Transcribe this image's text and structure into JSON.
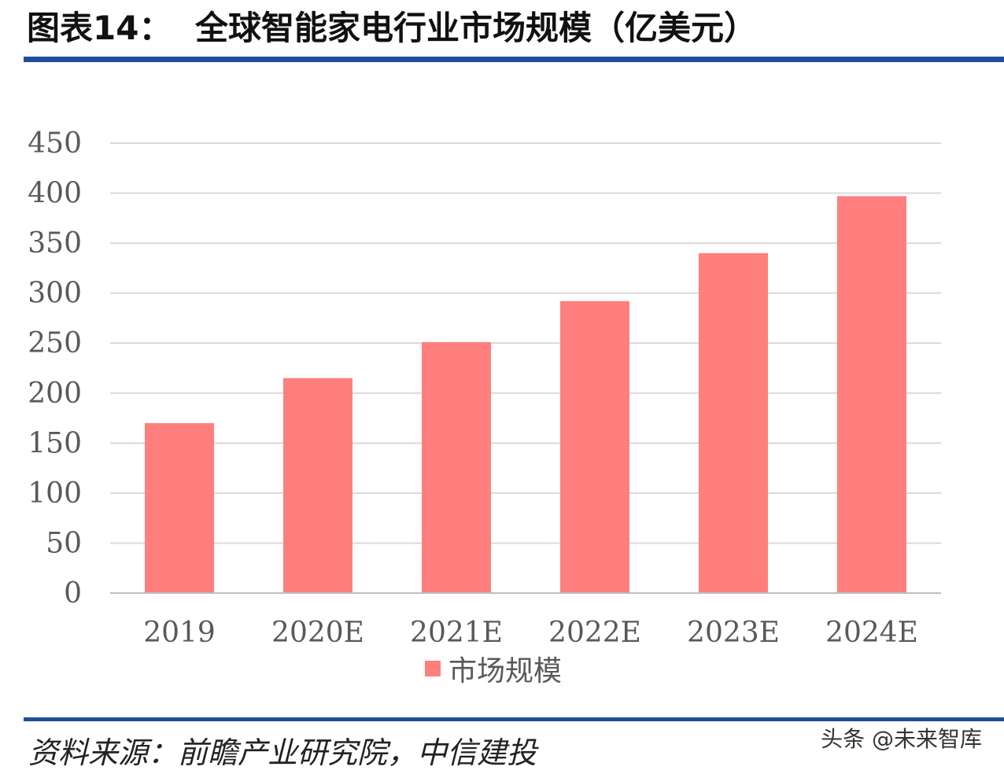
{
  "header": {
    "figure_label": "图表14：",
    "figure_title": "全球智能家电行业市场规模（亿美元）"
  },
  "footer": {
    "source": "资料来源：前瞻产业研究院，中信建投",
    "watermark": "头条 @未来智库"
  },
  "colors": {
    "bar": "#ff7f7f",
    "rule": "#1f4e9a",
    "grid": "#d9d9d9",
    "axis": "#bfbfbf",
    "text": "#595959"
  },
  "chart_data": {
    "type": "bar",
    "categories": [
      "2019",
      "2020E",
      "2021E",
      "2022E",
      "2023E",
      "2024E"
    ],
    "series": [
      {
        "name": "市场规模",
        "values": [
          170,
          215,
          251,
          292,
          340,
          397
        ]
      }
    ],
    "yticks": [
      "0",
      "50",
      "100",
      "150",
      "200",
      "250",
      "300",
      "350",
      "400",
      "450"
    ],
    "ylim": [
      0,
      450
    ],
    "grid": true,
    "legend_position": "bottom",
    "title": "",
    "xlabel": "",
    "ylabel": ""
  }
}
